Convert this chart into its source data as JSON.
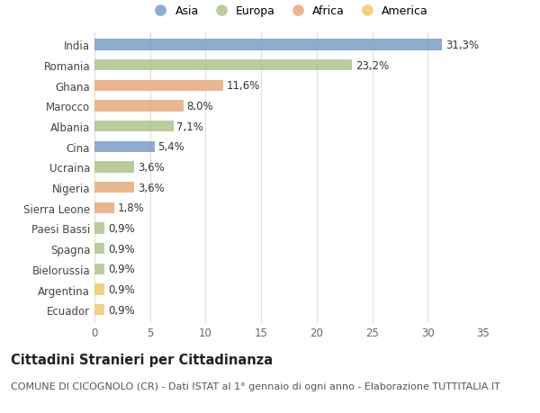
{
  "countries": [
    "India",
    "Romania",
    "Ghana",
    "Marocco",
    "Albania",
    "Cina",
    "Ucraina",
    "Nigeria",
    "Sierra Leone",
    "Paesi Bassi",
    "Spagna",
    "Bielorussia",
    "Argentina",
    "Ecuador"
  ],
  "values": [
    31.3,
    23.2,
    11.6,
    8.0,
    7.1,
    5.4,
    3.6,
    3.6,
    1.8,
    0.9,
    0.9,
    0.9,
    0.9,
    0.9
  ],
  "labels": [
    "31,3%",
    "23,2%",
    "11,6%",
    "8,0%",
    "7,1%",
    "5,4%",
    "3,6%",
    "3,6%",
    "1,8%",
    "0,9%",
    "0,9%",
    "0,9%",
    "0,9%",
    "0,9%"
  ],
  "colors": [
    "#7a9cc8",
    "#b0c48a",
    "#e8aa7a",
    "#e8aa7a",
    "#b0c48a",
    "#7a9cc8",
    "#b0c48a",
    "#e8aa7a",
    "#e8aa7a",
    "#b0c48a",
    "#b0c48a",
    "#b0c48a",
    "#f0cb6a",
    "#f0cb6a"
  ],
  "legend_labels": [
    "Asia",
    "Europa",
    "Africa",
    "America"
  ],
  "legend_colors": [
    "#7a9cc8",
    "#b0c48a",
    "#e8aa7a",
    "#f0cb6a"
  ],
  "title": "Cittadini Stranieri per Cittadinanza",
  "subtitle": "COMUNE DI CICOGNOLO (CR) - Dati ISTAT al 1° gennaio di ogni anno - Elaborazione TUTTITALIA.IT",
  "xlim": [
    0,
    35
  ],
  "xticks": [
    0,
    5,
    10,
    15,
    20,
    25,
    30,
    35
  ],
  "background_color": "#ffffff",
  "grid_color": "#dddddd",
  "bar_height": 0.55,
  "label_fontsize": 8.5,
  "tick_fontsize": 8.5,
  "title_fontsize": 10.5,
  "subtitle_fontsize": 8
}
